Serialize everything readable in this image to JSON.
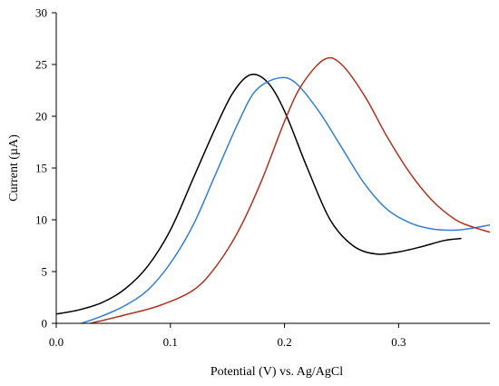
{
  "chart_data": {
    "type": "line",
    "xlabel": "Potential (V) vs. Ag/AgCl",
    "ylabel": "Current (µA)",
    "xlim": [
      0.0,
      0.38
    ],
    "ylim": [
      0,
      30
    ],
    "x_ticks": [
      0.0,
      0.1,
      0.2,
      0.3
    ],
    "x_tick_labels": [
      "0.0",
      "0.1",
      "0.2",
      "0.3"
    ],
    "y_ticks": [
      0,
      5,
      10,
      15,
      20,
      25,
      30
    ],
    "y_tick_labels": [
      "0",
      "5",
      "10",
      "15",
      "20",
      "25",
      "30"
    ],
    "grid": false,
    "series": [
      {
        "color": "#000000",
        "points": [
          [
            0.0,
            0.9
          ],
          [
            0.02,
            1.3
          ],
          [
            0.04,
            2.0
          ],
          [
            0.06,
            3.3
          ],
          [
            0.08,
            5.5
          ],
          [
            0.1,
            9.0
          ],
          [
            0.12,
            14.0
          ],
          [
            0.14,
            19.0
          ],
          [
            0.155,
            22.3
          ],
          [
            0.17,
            24.0
          ],
          [
            0.185,
            23.3
          ],
          [
            0.2,
            20.5
          ],
          [
            0.22,
            15.0
          ],
          [
            0.24,
            10.0
          ],
          [
            0.26,
            7.5
          ],
          [
            0.28,
            6.7
          ],
          [
            0.3,
            6.9
          ],
          [
            0.32,
            7.4
          ],
          [
            0.34,
            8.0
          ],
          [
            0.355,
            8.2
          ]
        ]
      },
      {
        "color": "#2f7fdc",
        "points": [
          [
            0.022,
            0.0
          ],
          [
            0.04,
            0.7
          ],
          [
            0.06,
            1.7
          ],
          [
            0.08,
            3.2
          ],
          [
            0.1,
            5.8
          ],
          [
            0.12,
            9.5
          ],
          [
            0.14,
            14.5
          ],
          [
            0.16,
            19.5
          ],
          [
            0.175,
            22.5
          ],
          [
            0.195,
            23.7
          ],
          [
            0.21,
            23.2
          ],
          [
            0.23,
            20.5
          ],
          [
            0.25,
            17.0
          ],
          [
            0.27,
            13.5
          ],
          [
            0.29,
            11.0
          ],
          [
            0.31,
            9.7
          ],
          [
            0.33,
            9.1
          ],
          [
            0.35,
            9.0
          ],
          [
            0.365,
            9.2
          ],
          [
            0.38,
            9.5
          ]
        ]
      },
      {
        "color": "#b5311a",
        "points": [
          [
            0.03,
            0.0
          ],
          [
            0.06,
            0.8
          ],
          [
            0.09,
            1.7
          ],
          [
            0.12,
            3.2
          ],
          [
            0.14,
            5.5
          ],
          [
            0.16,
            9.0
          ],
          [
            0.18,
            13.8
          ],
          [
            0.2,
            19.5
          ],
          [
            0.215,
            23.0
          ],
          [
            0.235,
            25.5
          ],
          [
            0.25,
            25.0
          ],
          [
            0.27,
            22.0
          ],
          [
            0.29,
            18.0
          ],
          [
            0.31,
            14.5
          ],
          [
            0.33,
            11.8
          ],
          [
            0.35,
            10.0
          ],
          [
            0.365,
            9.3
          ],
          [
            0.38,
            8.8
          ]
        ]
      }
    ]
  }
}
